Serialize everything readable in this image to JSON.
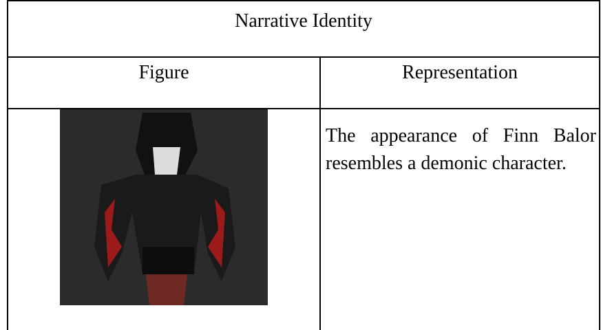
{
  "header": {
    "title": "Narrative Identity"
  },
  "table": {
    "headers": [
      "Figure",
      "Representation"
    ],
    "rows": [
      {
        "representation": "The appearance of Finn Balor resembles a demonic character."
      }
    ]
  }
}
